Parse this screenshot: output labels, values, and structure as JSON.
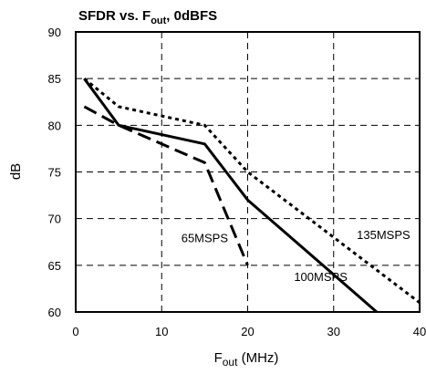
{
  "chart_data": {
    "type": "line",
    "title": "SFDR vs. F",
    "title_sub": "out",
    "title_rest": ", 0dBFS",
    "xlabel": "F",
    "xlabel_sub": "out",
    "xlabel_rest": " (MHz)",
    "ylabel": "dB",
    "xlim": [
      0,
      40
    ],
    "ylim": [
      60,
      90
    ],
    "xticks": [
      0,
      10,
      20,
      30,
      40
    ],
    "yticks": [
      60,
      65,
      70,
      75,
      80,
      85,
      90
    ],
    "grid": true,
    "legend": "none",
    "series": [
      {
        "name": "65MSPS",
        "style": "long-dash",
        "color": "#000000",
        "points": [
          [
            1,
            82
          ],
          [
            5,
            80
          ],
          [
            15,
            76
          ],
          [
            20,
            65
          ]
        ]
      },
      {
        "name": "100MSPS",
        "style": "solid",
        "color": "#000000",
        "points": [
          [
            1,
            85
          ],
          [
            5,
            80
          ],
          [
            15,
            78
          ],
          [
            20,
            72
          ],
          [
            35,
            60
          ]
        ]
      },
      {
        "name": "135MSPS",
        "style": "short-dash",
        "color": "#000000",
        "points": [
          [
            1,
            85
          ],
          [
            5,
            82
          ],
          [
            15,
            80
          ],
          [
            20,
            75
          ],
          [
            40,
            61
          ]
        ]
      }
    ],
    "annotations": [
      {
        "text": "65MSPS",
        "x": 15,
        "y": 67.5
      },
      {
        "text": "100MSPS",
        "x": 28.5,
        "y": 63.3
      },
      {
        "text": "135MSPS",
        "x": 35.8,
        "y": 67.8
      }
    ]
  }
}
